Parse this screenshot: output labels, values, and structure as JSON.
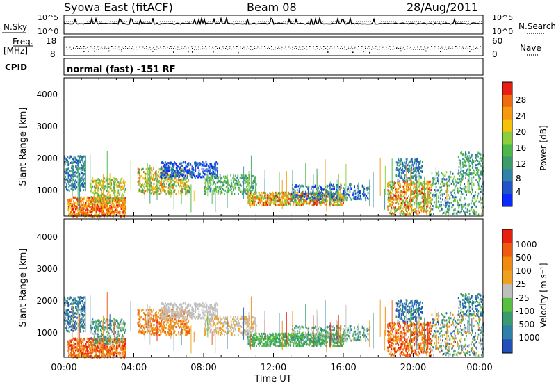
{
  "header": {
    "title": "Syowa East (fitACF)",
    "beam": "Beam 08",
    "date": "28/Aug/2011"
  },
  "aux": {
    "nsky_label": "N.Sky",
    "nsearch_label": "N.Search",
    "noise_top": "10^5",
    "noise_bottom": "10^0",
    "freq_label": "Freq.",
    "freq_unit": "[MHz]",
    "freq_ticks": [
      "18",
      "8"
    ],
    "nave_label": "Nave",
    "nave_ticks": [
      "60",
      "0"
    ],
    "cpid_label": "CPID",
    "cpid_value": "normal (fast) -151 RF"
  },
  "chart_data": [
    {
      "type": "heatmap",
      "name": "power-panel",
      "ylabel": "Slant Range [km]",
      "xlabel": "",
      "yticks": [
        "4000",
        "3000",
        "2000",
        "1000"
      ],
      "ylim": [
        180,
        4500
      ],
      "xlim": [
        0,
        24
      ],
      "colorbar": {
        "label": "Power [dB]",
        "ticks": [
          "28",
          "24",
          "20",
          "16",
          "12",
          "8",
          "4"
        ],
        "colors": [
          "#0a2bff",
          "#1f55c8",
          "#2f82a8",
          "#3d9d6a",
          "#4db84a",
          "#8ccf3c",
          "#f5c20a",
          "#f59a0f",
          "#f06a10",
          "#e81e12"
        ]
      }
    },
    {
      "type": "heatmap",
      "name": "velocity-panel",
      "ylabel": "Slant Range [km]",
      "xlabel": "Time UT",
      "yticks": [
        "4000",
        "3000",
        "2000",
        "1000"
      ],
      "xticks": [
        "00:00",
        "04:00",
        "08:00",
        "12:00",
        "16:00",
        "20:00",
        "00:00"
      ],
      "ylim": [
        180,
        4500
      ],
      "xlim": [
        0,
        24
      ],
      "colorbar": {
        "label": "Velocity [m s⁻¹]",
        "ticks": [
          "1000",
          "500",
          "100",
          "25",
          "-25",
          "-100",
          "-500",
          "-1000"
        ],
        "colors": [
          "#2050b8",
          "#2f7fa8",
          "#3a9a70",
          "#58c040",
          "#bfbfbf",
          "#f0a020",
          "#f08a10",
          "#ee5a10",
          "#e82010"
        ]
      }
    }
  ]
}
